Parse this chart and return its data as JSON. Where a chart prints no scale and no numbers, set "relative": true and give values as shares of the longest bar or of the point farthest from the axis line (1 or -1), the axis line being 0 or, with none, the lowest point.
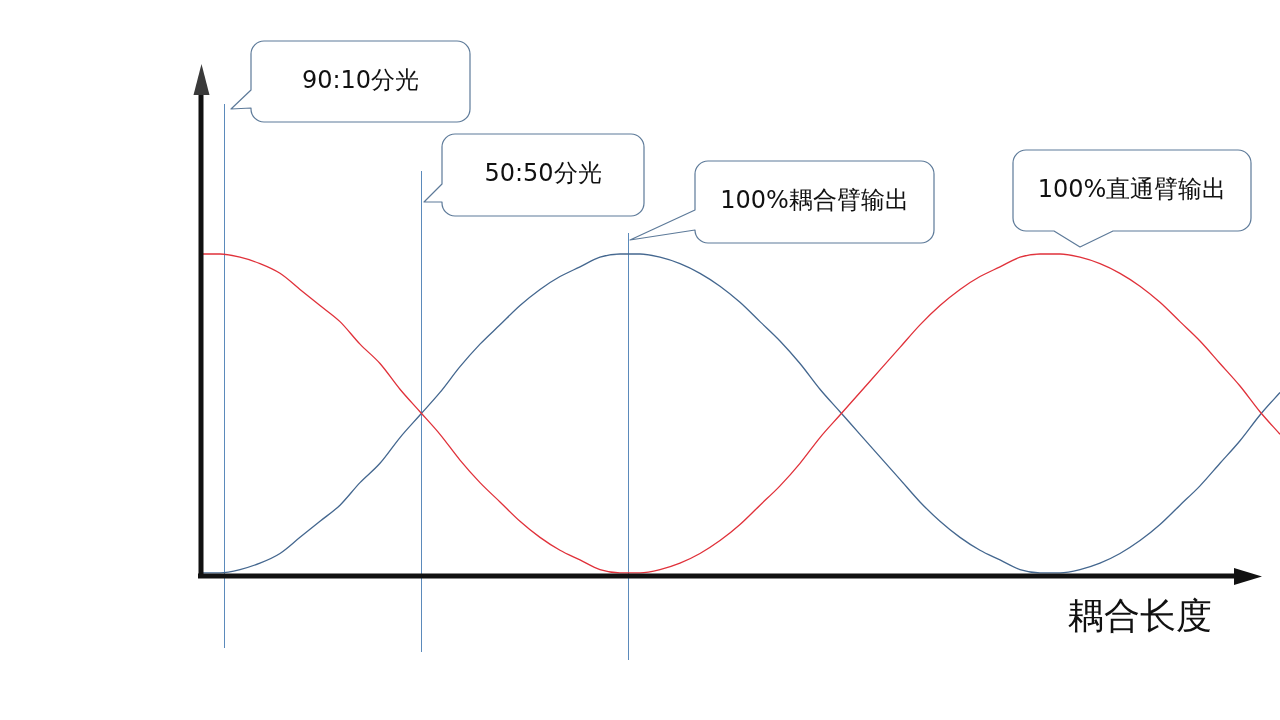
{
  "chart_data": {
    "type": "line",
    "xlabel": "耦合长度",
    "relative": true,
    "marker": "none",
    "categories": [
      null,
      null,
      null,
      null,
      null,
      null,
      null,
      null,
      null,
      null,
      null,
      null,
      null,
      null,
      null,
      null,
      null,
      null,
      null,
      null,
      null,
      null,
      null,
      null,
      null,
      null,
      null,
      null,
      null,
      null,
      null,
      null,
      null,
      null,
      null,
      null,
      null,
      null,
      null,
      null,
      null,
      null,
      null,
      null,
      null,
      null,
      null,
      null,
      null,
      null,
      null,
      null,
      null,
      null,
      null
    ],
    "series": [
      {
        "color": "#e0313a",
        "values": [
          1.0,
          1.0,
          0.99,
          0.97,
          0.94,
          0.89,
          0.84,
          0.79,
          0.72,
          0.66,
          0.58,
          0.51,
          0.44,
          0.36,
          0.29,
          0.23,
          0.17,
          0.12,
          0.08,
          0.05,
          0.02,
          0.01,
          0.01,
          0.02,
          0.04,
          0.07,
          0.11,
          0.16,
          0.22,
          0.28,
          0.35,
          0.43,
          0.5,
          0.57,
          0.64,
          0.71,
          0.78,
          0.84,
          0.89,
          0.93,
          0.96,
          0.99,
          1.0,
          1.0,
          0.99,
          0.97,
          0.94,
          0.9,
          0.85,
          0.79,
          0.73,
          0.66,
          0.59,
          0.51,
          0.44
        ]
      },
      {
        "color": "#44678f",
        "values": [
          0.01,
          0.01,
          0.02,
          0.04,
          0.07,
          0.12,
          0.17,
          0.22,
          0.29,
          0.35,
          0.43,
          0.5,
          0.57,
          0.65,
          0.72,
          0.78,
          0.84,
          0.89,
          0.93,
          0.96,
          0.99,
          1.0,
          1.0,
          0.99,
          0.97,
          0.94,
          0.9,
          0.85,
          0.79,
          0.73,
          0.66,
          0.58,
          0.51,
          0.44,
          0.37,
          0.3,
          0.23,
          0.17,
          0.12,
          0.08,
          0.05,
          0.02,
          0.01,
          0.01,
          0.02,
          0.04,
          0.07,
          0.11,
          0.16,
          0.22,
          0.28,
          0.35,
          0.42,
          0.5,
          0.57
        ]
      }
    ],
    "annotations": [
      "90:10分光",
      "50:50分光",
      "100%耦合臂输出",
      "100%直通臂输出"
    ]
  }
}
